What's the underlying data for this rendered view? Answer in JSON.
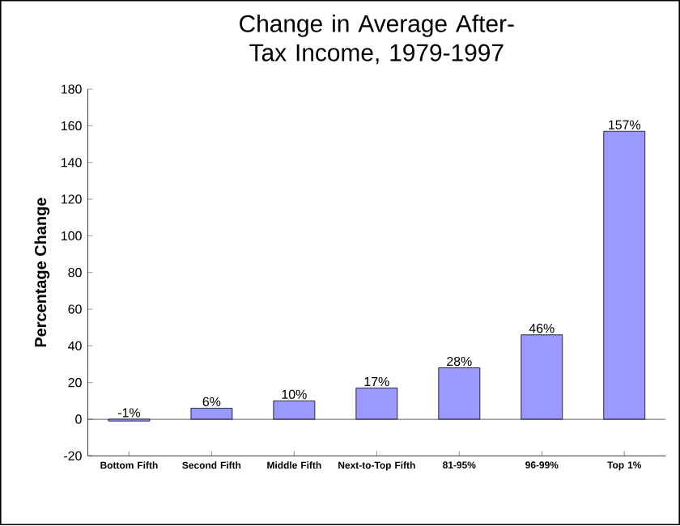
{
  "chart_data": {
    "type": "bar",
    "title": "Change in Average After-Tax Income, 1979-1997",
    "ylabel": "Percentage Change",
    "categories": [
      "Bottom Fifth",
      "Second Fifth",
      "Middle Fifth",
      "Next-to-Top Fifth",
      "81-95%",
      "96-99%",
      "Top 1%"
    ],
    "values": [
      -1,
      6,
      10,
      17,
      28,
      46,
      157
    ],
    "value_labels": [
      "-1%",
      "6%",
      "10%",
      "17%",
      "28%",
      "46%",
      "157%"
    ],
    "color": "#9999ff",
    "ylim": [
      -20,
      180
    ],
    "yticks": [
      -20,
      0,
      20,
      40,
      60,
      80,
      100,
      120,
      140,
      160,
      180
    ]
  }
}
